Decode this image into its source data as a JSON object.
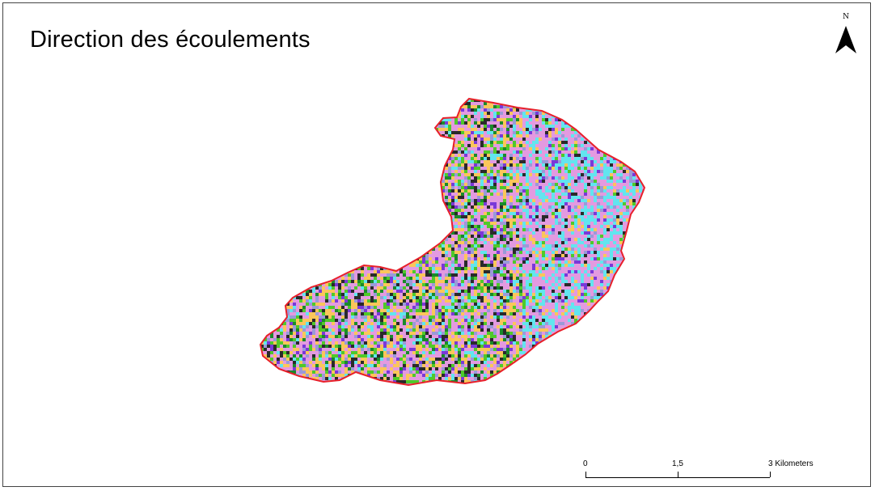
{
  "map": {
    "title": "Direction des écoulements",
    "north_label": "N",
    "boundary_color": "#e8202a",
    "direction_palette": [
      "#e39ae0",
      "#fbc65a",
      "#62e5ef",
      "#4fc92a",
      "#7a38d8",
      "#2a2a2a",
      "#1a8a2a",
      "#9a9ad8"
    ],
    "icons": [
      "north-arrow-icon"
    ]
  },
  "scale_bar": {
    "tick_labels": [
      "0",
      "1,5",
      "3 Kilometers"
    ]
  }
}
